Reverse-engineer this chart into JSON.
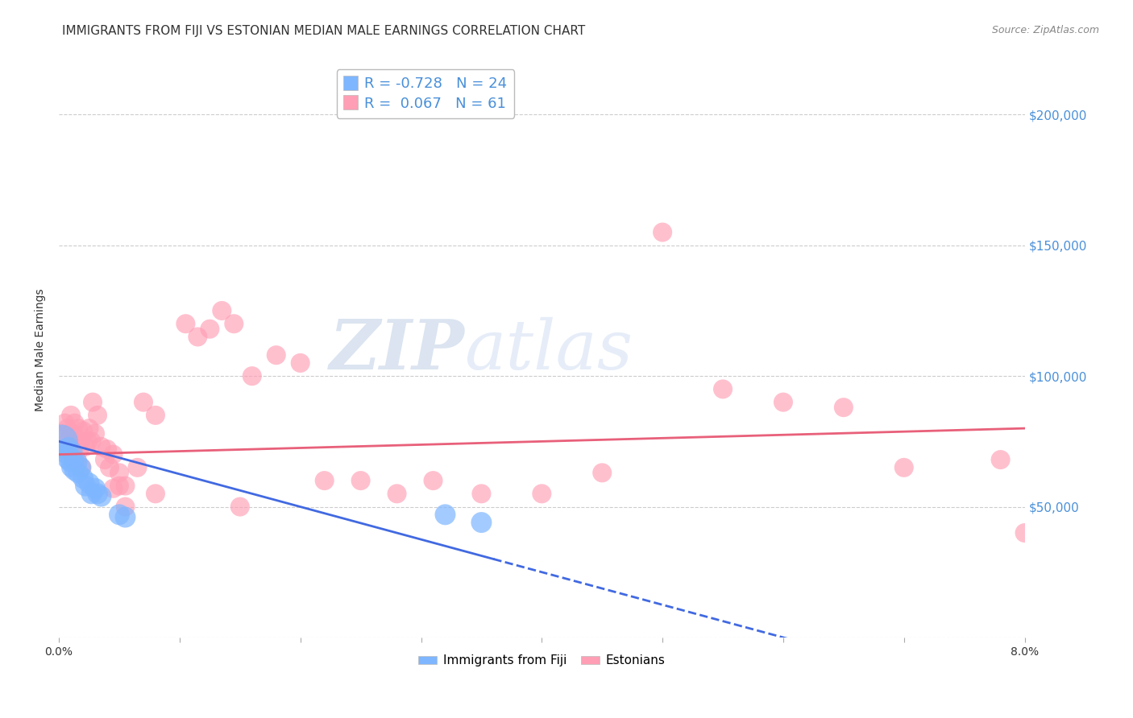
{
  "title": "IMMIGRANTS FROM FIJI VS ESTONIAN MEDIAN MALE EARNINGS CORRELATION CHART",
  "source": "Source: ZipAtlas.com",
  "ylabel": "Median Male Earnings",
  "xlim": [
    0.0,
    8.0
  ],
  "ylim": [
    0,
    220000
  ],
  "yticks": [
    0,
    50000,
    100000,
    150000,
    200000
  ],
  "ytick_labels": [
    "",
    "$50,000",
    "$100,000",
    "$150,000",
    "$200,000"
  ],
  "xticks": [
    0.0,
    1.0,
    2.0,
    3.0,
    4.0,
    5.0,
    6.0,
    7.0,
    8.0
  ],
  "xtick_labels": [
    "0.0%",
    "",
    "",
    "",
    "",
    "",
    "",
    "",
    "8.0%"
  ],
  "fiji_R": -0.728,
  "fiji_N": 24,
  "estonian_R": 0.067,
  "estonian_N": 61,
  "fiji_color": "#7EB6FF",
  "estonian_color": "#FF9EB5",
  "fiji_line_color": "#4169E1",
  "estonian_line_color": "#E8607A",
  "background_color": "#FFFFFF",
  "grid_color": "#CCCCCC",
  "fiji_x": [
    0.02,
    0.04,
    0.06,
    0.07,
    0.08,
    0.09,
    0.1,
    0.11,
    0.12,
    0.13,
    0.15,
    0.16,
    0.18,
    0.2,
    0.22,
    0.25,
    0.27,
    0.3,
    0.32,
    0.35,
    0.5,
    0.55,
    3.2,
    3.5
  ],
  "fiji_y": [
    75000,
    72000,
    70000,
    68000,
    73000,
    67000,
    65000,
    71000,
    68000,
    64000,
    67000,
    63000,
    65000,
    61000,
    58000,
    59000,
    55000,
    57000,
    55000,
    54000,
    47000,
    46000,
    47000,
    44000
  ],
  "estonian_x": [
    0.03,
    0.05,
    0.06,
    0.07,
    0.08,
    0.09,
    0.1,
    0.11,
    0.12,
    0.13,
    0.14,
    0.15,
    0.16,
    0.17,
    0.18,
    0.19,
    0.2,
    0.22,
    0.24,
    0.25,
    0.27,
    0.28,
    0.3,
    0.32,
    0.35,
    0.38,
    0.4,
    0.42,
    0.45,
    0.5,
    0.55,
    0.65,
    0.8,
    1.05,
    1.15,
    1.25,
    1.35,
    1.45,
    1.6,
    1.8,
    2.0,
    2.2,
    2.5,
    2.8,
    3.1,
    3.5,
    4.0,
    4.5,
    5.0,
    5.5,
    6.0,
    6.5,
    7.0,
    7.8,
    8.0,
    0.45,
    0.5,
    0.55,
    0.7,
    0.8,
    1.5
  ],
  "estonian_y": [
    78000,
    82000,
    75000,
    80000,
    72000,
    76000,
    85000,
    78000,
    68000,
    82000,
    74000,
    68000,
    80000,
    72000,
    75000,
    65000,
    79000,
    73000,
    75000,
    80000,
    75000,
    90000,
    78000,
    85000,
    73000,
    68000,
    72000,
    65000,
    70000,
    63000,
    58000,
    65000,
    55000,
    120000,
    115000,
    118000,
    125000,
    120000,
    100000,
    108000,
    105000,
    60000,
    60000,
    55000,
    60000,
    55000,
    55000,
    63000,
    155000,
    95000,
    90000,
    88000,
    65000,
    68000,
    40000,
    57000,
    58000,
    50000,
    90000,
    85000,
    50000
  ],
  "title_fontsize": 11,
  "axis_label_fontsize": 10,
  "tick_fontsize": 10,
  "legend_fontsize": 11,
  "source_fontsize": 9,
  "fiji_line_x0": 0.0,
  "fiji_line_y0": 75000,
  "fiji_line_x1": 3.6,
  "fiji_line_y1": 30000,
  "estonian_line_x0": 0.0,
  "estonian_line_y0": 70000,
  "estonian_line_x1": 8.0,
  "estonian_line_y1": 80000
}
